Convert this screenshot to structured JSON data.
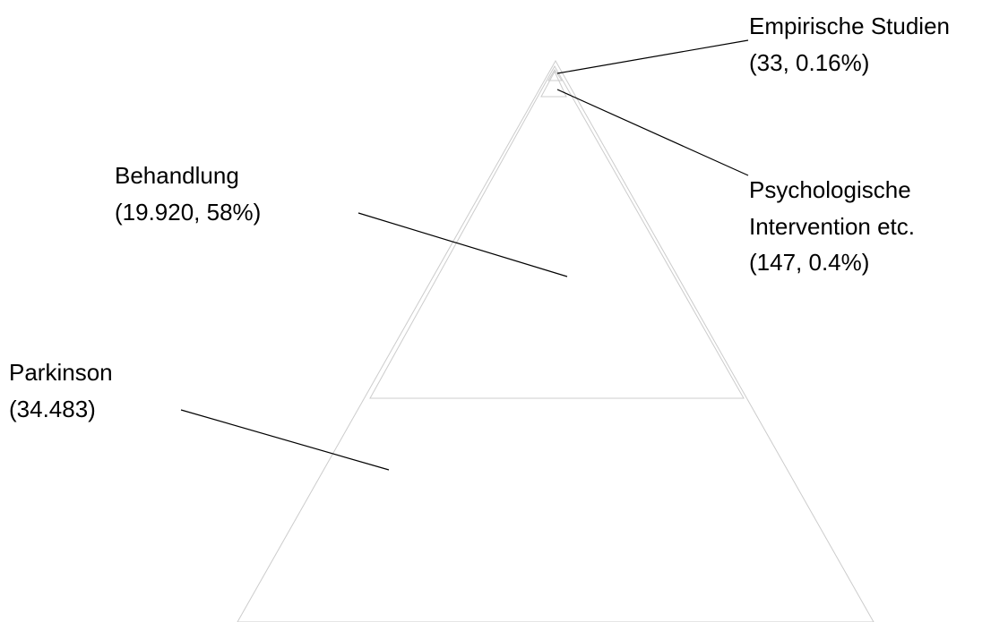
{
  "layers": [
    {
      "id": "parkinson",
      "name": "Parkinson",
      "detail": "(34.483)"
    },
    {
      "id": "behandlung",
      "name": "Behandlung",
      "detail": "(19.920, 58%)"
    },
    {
      "id": "psychologische",
      "name_line1": "Psychologische",
      "name_line2": "Intervention etc.",
      "detail": "(147, 0.4%)"
    },
    {
      "id": "empirische",
      "name": "Empirische Studien",
      "detail": "(33, 0.16%)"
    }
  ]
}
